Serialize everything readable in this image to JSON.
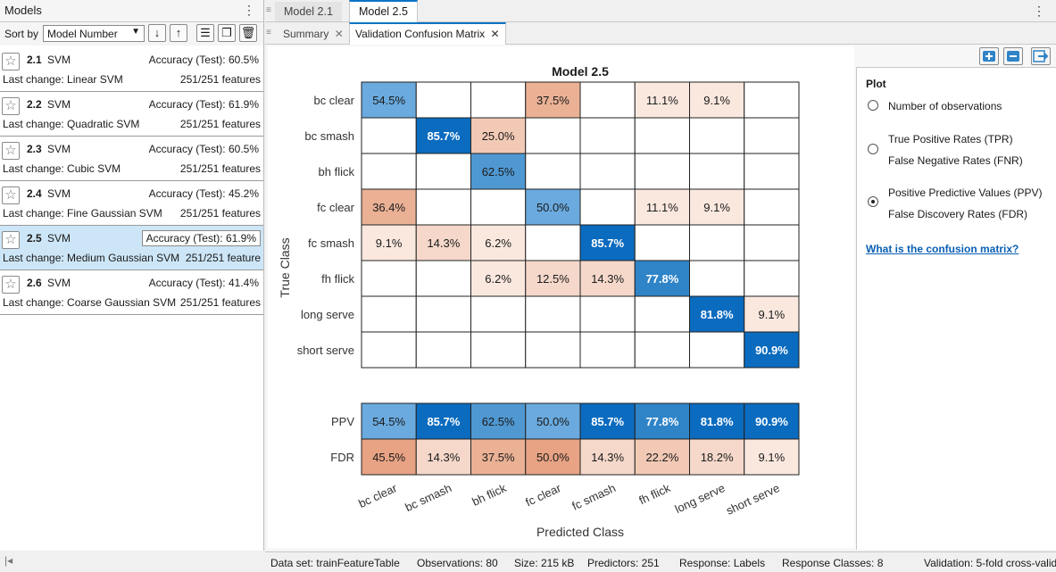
{
  "models_panel": {
    "title": "Models",
    "sort_label": "Sort by",
    "sort_value": "Model Number",
    "models": [
      {
        "num": "2.1",
        "type": "SVM",
        "accuracy": "Accuracy (Test): 60.5%",
        "change": "Last change: Linear SVM",
        "features": "251/251 features"
      },
      {
        "num": "2.2",
        "type": "SVM",
        "accuracy": "Accuracy (Test): 61.9%",
        "change": "Last change: Quadratic SVM",
        "features": "251/251 features"
      },
      {
        "num": "2.3",
        "type": "SVM",
        "accuracy": "Accuracy (Test): 60.5%",
        "change": "Last change: Cubic SVM",
        "features": "251/251 features"
      },
      {
        "num": "2.4",
        "type": "SVM",
        "accuracy": "Accuracy (Test): 45.2%",
        "change": "Last change: Fine Gaussian SVM",
        "features": "251/251 features"
      },
      {
        "num": "2.5",
        "type": "SVM",
        "accuracy": "Accuracy (Test): 61.9%",
        "change": "Last change: Medium Gaussian SVM",
        "features": "251/251 feature"
      },
      {
        "num": "2.6",
        "type": "SVM",
        "accuracy": "Accuracy (Test): 41.4%",
        "change": "Last change: Coarse Gaussian SVM",
        "features": "251/251 features"
      }
    ]
  },
  "doc_tabs": {
    "tab1": "Model 2.1",
    "tab2": "Model 2.5"
  },
  "sub_tabs": {
    "tab1": "Summary",
    "tab2": "Validation Confusion Matrix"
  },
  "options": {
    "heading": "Plot",
    "opt1": "Number of observations",
    "opt2a": "True Positive Rates (TPR)",
    "opt2b": "False Negative Rates (FNR)",
    "opt3a": "Positive Predictive Values (PPV)",
    "opt3b": "False Discovery Rates (FDR)",
    "selected": "ppv_fdr",
    "help_link": "What is the confusion matrix?"
  },
  "status": {
    "dataset": "Data set: trainFeatureTable",
    "observations": "Observations: 80",
    "size": "Size: 215 kB",
    "predictors": "Predictors: 251",
    "response": "Response: Labels",
    "classes": "Response Classes: 8",
    "validation": "Validation: 5-fold cross-valid"
  },
  "colors": {
    "blue_dark": "#0b6bbf",
    "blue_mid": "#2f84c8",
    "blue_light": "#5aa2d6",
    "orange": "#e8a888",
    "accent": "#0a74c4"
  },
  "chart_data": {
    "type": "heatmap",
    "title": "Model 2.5",
    "xlabel": "Predicted Class",
    "ylabel": "True Class",
    "classes": [
      "bc clear",
      "bc smash",
      "bh flick",
      "fc clear",
      "fc smash",
      "fh flick",
      "long serve",
      "short serve"
    ],
    "matrix": [
      [
        "54.5%",
        "",
        "",
        "37.5%",
        "",
        "11.1%",
        "9.1%",
        ""
      ],
      [
        "",
        "85.7%",
        "25.0%",
        "",
        "",
        "",
        "",
        ""
      ],
      [
        "",
        "",
        "62.5%",
        "",
        "",
        "",
        "",
        ""
      ],
      [
        "36.4%",
        "",
        "",
        "50.0%",
        "",
        "11.1%",
        "9.1%",
        ""
      ],
      [
        "9.1%",
        "14.3%",
        "6.2%",
        "",
        "85.7%",
        "",
        "",
        ""
      ],
      [
        "",
        "",
        "6.2%",
        "12.5%",
        "14.3%",
        "77.8%",
        "",
        ""
      ],
      [
        "",
        "",
        "",
        "",
        "",
        "",
        "81.8%",
        "9.1%"
      ],
      [
        "",
        "",
        "",
        "",
        "",
        "",
        "",
        "90.9%"
      ]
    ],
    "summary_rows": [
      {
        "label": "PPV",
        "values": [
          "54.5%",
          "85.7%",
          "62.5%",
          "50.0%",
          "85.7%",
          "77.8%",
          "81.8%",
          "90.9%"
        ]
      },
      {
        "label": "FDR",
        "values": [
          "45.5%",
          "14.3%",
          "37.5%",
          "50.0%",
          "14.3%",
          "22.2%",
          "18.2%",
          "9.1%"
        ]
      }
    ]
  }
}
